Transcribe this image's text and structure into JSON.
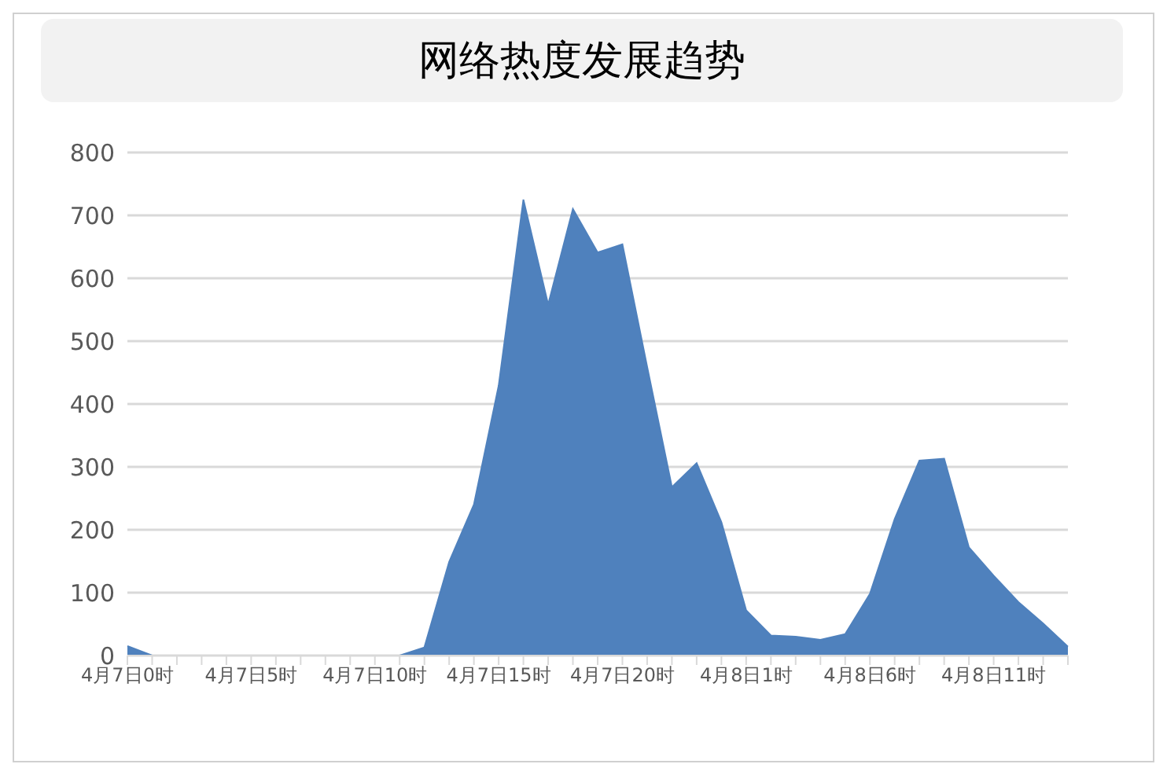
{
  "chart_data": {
    "type": "area",
    "title": "网络热度发展趋势",
    "categories": [
      "4月7日0时",
      null,
      null,
      null,
      null,
      "4月7日5时",
      null,
      null,
      null,
      null,
      "4月7日10时",
      null,
      null,
      null,
      null,
      "4月7日15时",
      null,
      null,
      null,
      null,
      "4月7日20时",
      null,
      null,
      null,
      null,
      "4月8日1时",
      null,
      null,
      null,
      null,
      "4月8日6时",
      null,
      null,
      null,
      null,
      "4月8日11时",
      null,
      null,
      null
    ],
    "values": [
      15,
      0,
      0,
      0,
      0,
      0,
      0,
      0,
      0,
      0,
      0,
      0,
      13,
      149,
      240,
      429,
      725,
      558,
      710,
      641,
      654,
      459,
      268,
      306,
      212,
      72,
      32,
      30,
      25,
      34,
      98,
      217,
      310,
      313,
      172,
      127,
      85,
      51,
      14
    ],
    "color": "#4f81bd",
    "ylim": [
      0,
      800
    ],
    "yticks": [
      0,
      100,
      200,
      300,
      400,
      500,
      600,
      700,
      800
    ],
    "grid": "y",
    "legend": false
  }
}
